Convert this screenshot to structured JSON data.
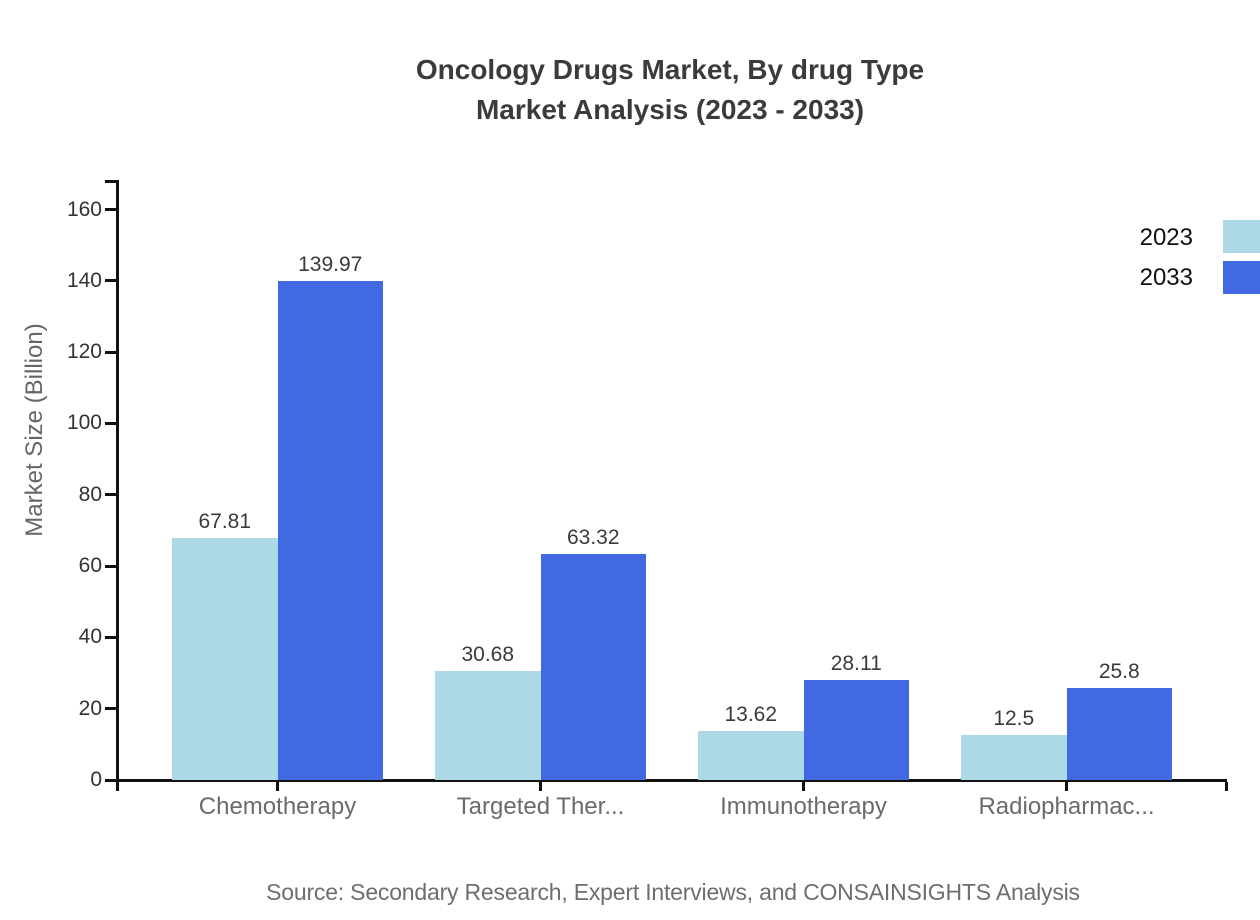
{
  "title": {
    "line1": "Oncology Drugs Market, By drug Type",
    "line2": "Market Analysis (2023 - 2033)"
  },
  "source": "Source: Secondary Research, Expert Interviews, and CONSAINSIGHTS Analysis",
  "chart_data": {
    "type": "bar",
    "grouped": true,
    "categories": [
      "Chemotherapy",
      "Targeted Ther...",
      "Immunotherapy",
      "Radiopharmac..."
    ],
    "series": [
      {
        "name": "2023",
        "color": "#add8e6",
        "values": [
          67.81,
          30.68,
          13.62,
          12.5
        ]
      },
      {
        "name": "2033",
        "color": "#4169e1",
        "values": [
          139.97,
          63.32,
          28.11,
          25.8
        ]
      }
    ],
    "title": "Oncology Drugs Market, By drug Type Market Analysis (2023 - 2033)",
    "xlabel": "",
    "ylabel": "Market Size (Billion)",
    "ylim": [
      0,
      168
    ],
    "yticks": [
      0,
      20,
      40,
      60,
      80,
      100,
      120,
      140,
      160
    ],
    "grid": false,
    "legend_position": "top-right",
    "legend_entries": [
      "2023",
      "2033"
    ],
    "colors": {
      "axis": "#111111",
      "title_text": "#3b3b3b",
      "ytick_text": "#333333",
      "category_text": "#6b6b6b",
      "value_label_text": "#3a3a3a",
      "axis_title_text": "#666666",
      "legend_text": "#111111",
      "source_text": "#6e6e6e",
      "background": "#ffffff"
    }
  }
}
